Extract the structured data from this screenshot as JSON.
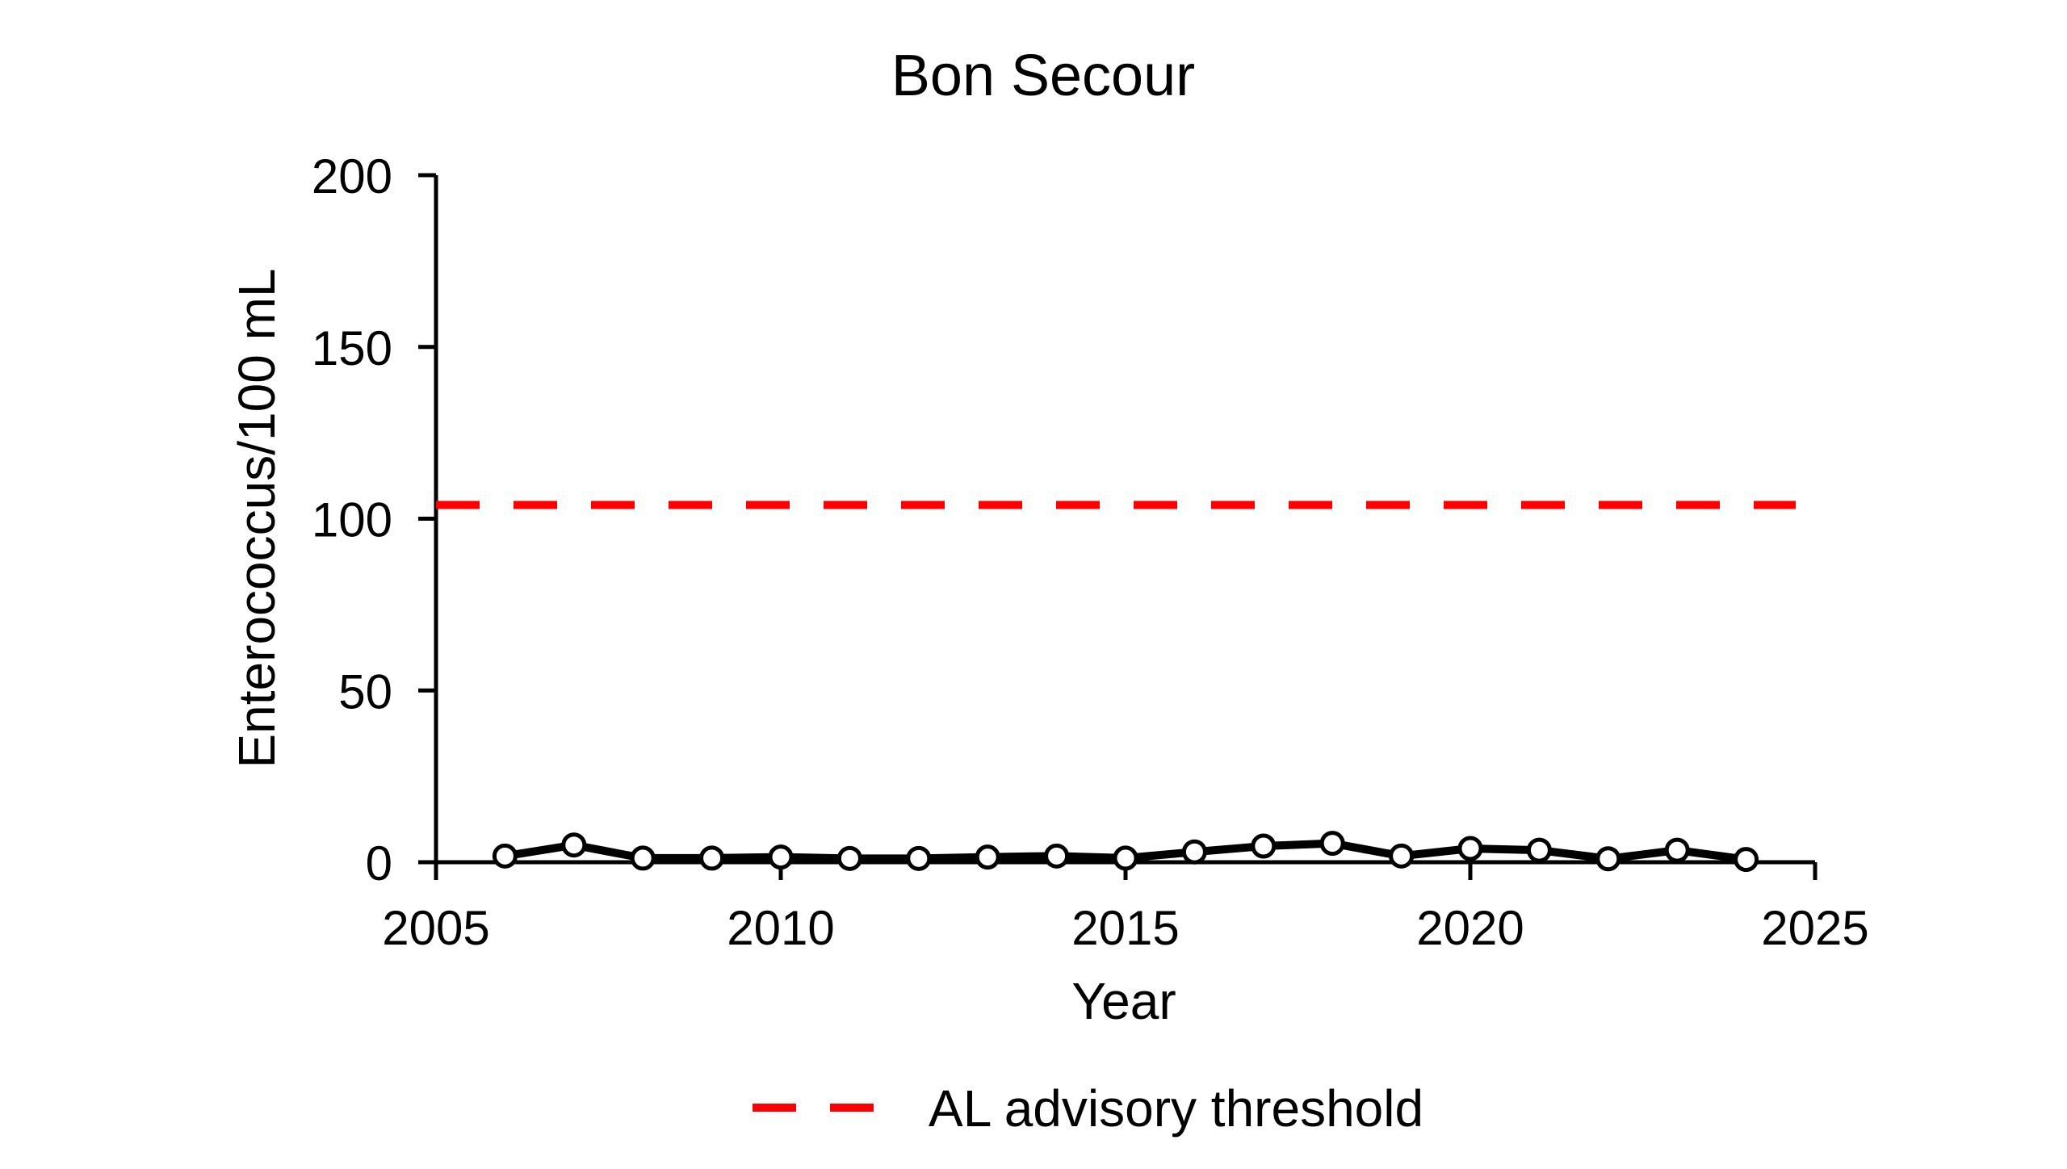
{
  "chart_data": {
    "type": "line",
    "title": "Bon Secour",
    "xlabel": "Year",
    "ylabel": "Enterococcus/100 mL",
    "xlim": [
      2005,
      2025
    ],
    "ylim": [
      0,
      200
    ],
    "xticks": [
      2005,
      2010,
      2015,
      2020,
      2025
    ],
    "yticks": [
      0,
      50,
      100,
      150,
      200
    ],
    "grid": false,
    "legend_position": "bottom-center",
    "series": [
      {
        "x": [
          2006,
          2007,
          2008,
          2009,
          2010,
          2011,
          2012,
          2013,
          2014,
          2015,
          2016,
          2017,
          2018,
          2019,
          2020,
          2021,
          2022,
          2023,
          2024
        ],
        "y": [
          1.8,
          5.0,
          1.2,
          1.2,
          1.5,
          1.1,
          1.1,
          1.5,
          1.8,
          1.2,
          3.0,
          4.7,
          5.5,
          1.8,
          4.0,
          3.5,
          1.0,
          3.5,
          0.8
        ],
        "color": "#000000",
        "marker_fill": "#ffffff"
      }
    ],
    "reference_lines": [
      {
        "name": "AL advisory threshold",
        "y": 104,
        "color": "#ff0000",
        "style": "dashed"
      }
    ]
  }
}
